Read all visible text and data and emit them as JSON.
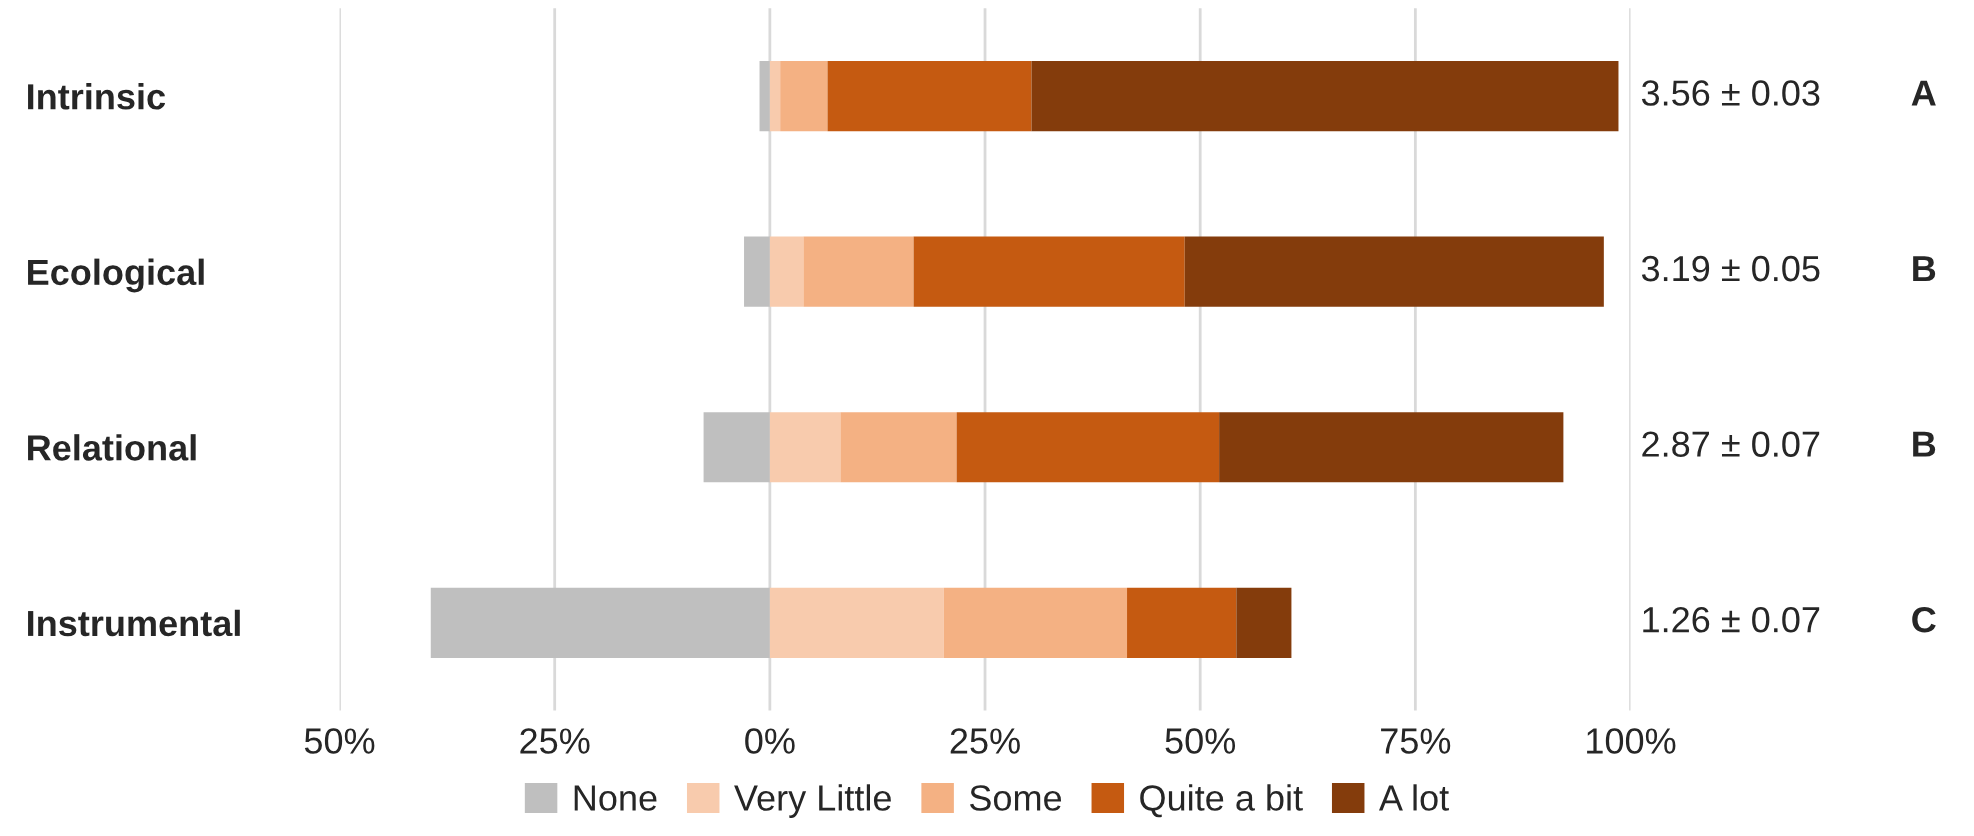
{
  "chart_data": {
    "type": "bar",
    "orientation": "horizontal",
    "stacked": true,
    "categories": [
      "Intrinsic",
      "Ecological",
      "Relational",
      "Instrumental"
    ],
    "series": [
      {
        "name": "None",
        "color": "#bfbfbf",
        "values": [
          -1.2,
          -3.0,
          -7.7,
          -39.4
        ]
      },
      {
        "name": "Very Little",
        "color": "#f8cbad",
        "values": [
          1.2,
          3.9,
          8.2,
          20.2
        ]
      },
      {
        "name": "Some",
        "color": "#f4b183",
        "values": [
          5.5,
          12.8,
          13.5,
          21.3
        ]
      },
      {
        "name": "Quite a bit",
        "color": "#c55a11",
        "values": [
          23.7,
          31.5,
          30.5,
          12.7
        ]
      },
      {
        "name": "A lot",
        "color": "#843c0c",
        "values": [
          68.2,
          48.7,
          40.0,
          6.4
        ]
      }
    ],
    "xlim": [
      -50,
      100
    ],
    "xticks": [
      {
        "value": -50,
        "label": "50%"
      },
      {
        "value": -25,
        "label": "25%"
      },
      {
        "value": 0,
        "label": "0%"
      },
      {
        "value": 25,
        "label": "25%"
      },
      {
        "value": 50,
        "label": "50%"
      },
      {
        "value": 75,
        "label": "75%"
      },
      {
        "value": 100,
        "label": "100%"
      }
    ],
    "grid": "x",
    "legend": "bottom",
    "annotations": [
      "3.56 ± 0.03",
      "A",
      "3.19 ± 0.05",
      "B",
      "2.87 ± 0.07",
      "B",
      "1.26 ± 0.07",
      "C"
    ]
  }
}
